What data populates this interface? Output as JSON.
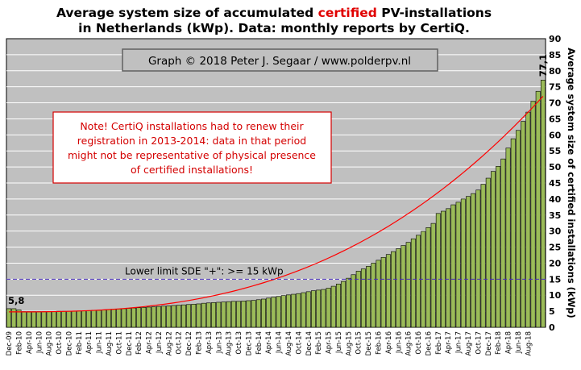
{
  "chart_data": {
    "type": "bar",
    "title_line1_pre": "Average system size of accumulated ",
    "title_line1_em": "certified",
    "title_line1_post": " PV-installations",
    "title_line2": "in Netherlands (kWp). Data: monthly reports by CertiQ.",
    "ylabel": "Average system size of certified installations (kWp)",
    "ylim": [
      0,
      90
    ],
    "yticks": [
      0,
      5,
      10,
      15,
      20,
      25,
      30,
      35,
      40,
      45,
      50,
      55,
      60,
      65,
      70,
      75,
      80,
      85,
      90
    ],
    "categories_shown": [
      "Dec-09",
      "Feb-10",
      "Apr-10",
      "Jun-10",
      "Aug-10",
      "Oct-10",
      "Dec-10",
      "Feb-11",
      "Apr-11",
      "Jun-11",
      "Aug-11",
      "Oct-11",
      "Dec-11",
      "Feb-12",
      "Apr-12",
      "Jun-12",
      "Aug-12",
      "Oct-12",
      "Dec-12",
      "Feb-13",
      "Apr-13",
      "Jun-13",
      "Aug-13",
      "Oct-13",
      "Dec-13",
      "Feb-14",
      "Apr-14",
      "Jun-14",
      "Aug-14",
      "Oct-14",
      "Dec-14",
      "Feb-15",
      "Apr-15",
      "Jun-15",
      "Aug-15",
      "Oct-15",
      "Dec-15",
      "Feb-16",
      "Apr-16",
      "Jun-16",
      "Aug-16",
      "Oct-16",
      "Dec-16",
      "Feb-17",
      "Apr-17",
      "Jun-17",
      "Aug-17",
      "Oct-17",
      "Dec-17",
      "Feb-18",
      "Apr-18",
      "Jun-18",
      "Aug-18"
    ],
    "start_month": "Dec-09",
    "values": [
      5.8,
      5.8,
      5.4,
      4.9,
      4.9,
      4.9,
      4.9,
      4.9,
      4.9,
      4.9,
      5.0,
      5.0,
      5.0,
      5.0,
      5.1,
      5.1,
      5.2,
      5.3,
      5.3,
      5.4,
      5.5,
      5.6,
      5.7,
      5.8,
      5.9,
      6.0,
      6.1,
      6.2,
      6.3,
      6.4,
      6.5,
      6.6,
      6.7,
      6.8,
      6.9,
      7.0,
      7.1,
      7.2,
      7.3,
      7.5,
      7.6,
      7.7,
      7.8,
      7.9,
      8.0,
      8.1,
      8.1,
      8.2,
      8.3,
      8.4,
      8.6,
      8.8,
      9.1,
      9.4,
      9.6,
      9.9,
      10.1,
      10.3,
      10.5,
      10.8,
      11.1,
      11.4,
      11.6,
      11.8,
      12.2,
      12.8,
      13.5,
      14.3,
      15.3,
      16.4,
      17.5,
      18.2,
      19.0,
      20.0,
      20.9,
      21.8,
      22.7,
      23.6,
      24.5,
      25.5,
      26.5,
      27.6,
      28.7,
      29.9,
      31.1,
      32.4,
      35.5,
      36.2,
      37.0,
      38.2,
      39.0,
      40.0,
      40.8,
      41.7,
      42.8,
      44.6,
      46.5,
      48.6,
      50.2,
      52.5,
      55.9,
      58.8,
      61.4,
      64.2,
      67.1,
      70.5,
      73.6,
      77.1
    ],
    "bar_color": "#9bbb59",
    "trend_color": "#ff0000",
    "first_label": "5,8",
    "last_label": "77,1",
    "reference_line": {
      "value": 15,
      "label": "Lower limit  SDE \"+\":   >= 15 kWp",
      "color": "#4a2fbf"
    },
    "grid": true,
    "legend": "none",
    "credit": "Graph © 2018 Peter J. Segaar / www.polderpv.nl",
    "note_lines": [
      "Note! CertiQ installations had to renew their",
      "registration in 2013-2014:  data in that period",
      "might not be representative of physical presence",
      "of certified installations!"
    ],
    "trend_power": 2.7
  },
  "colors": {
    "plot_bg": "#c0c0c0",
    "grid": "#ffffff",
    "note_border": "#d40000"
  }
}
